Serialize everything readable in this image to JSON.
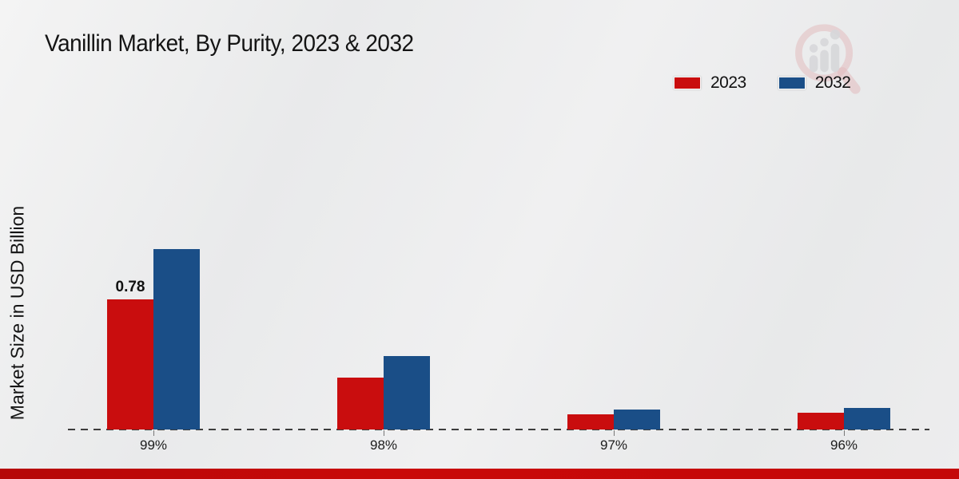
{
  "title": "Vanillin Market, By Purity, 2023 & 2032",
  "y_axis_label": "Market Size in USD Billion",
  "legend": {
    "items": [
      {
        "label": "2023",
        "color": "#c90d0e"
      },
      {
        "label": "2032",
        "color": "#1a4e87"
      }
    ]
  },
  "watermark_icon": "magnifier-bar-chart-logo",
  "footer_bar_color": "#c40808",
  "chart_data": {
    "type": "bar",
    "title": "Vanillin Market, By Purity, 2023 & 2032",
    "categories": [
      "99%",
      "98%",
      "97%",
      "96%"
    ],
    "series": [
      {
        "name": "2023",
        "color": "#c90d0e",
        "values": [
          0.78,
          0.31,
          0.09,
          0.1
        ]
      },
      {
        "name": "2032",
        "color": "#1a4e87",
        "values": [
          1.08,
          0.44,
          0.12,
          0.13
        ]
      }
    ],
    "data_labels": [
      {
        "series": "2023",
        "category": "99%",
        "text": "0.78"
      }
    ],
    "xlabel": "",
    "ylabel": "Market Size in USD Billion",
    "ylim": [
      0,
      1.2
    ],
    "grid": false,
    "legend_position": "top-right",
    "axis_line_style": "dashed"
  }
}
